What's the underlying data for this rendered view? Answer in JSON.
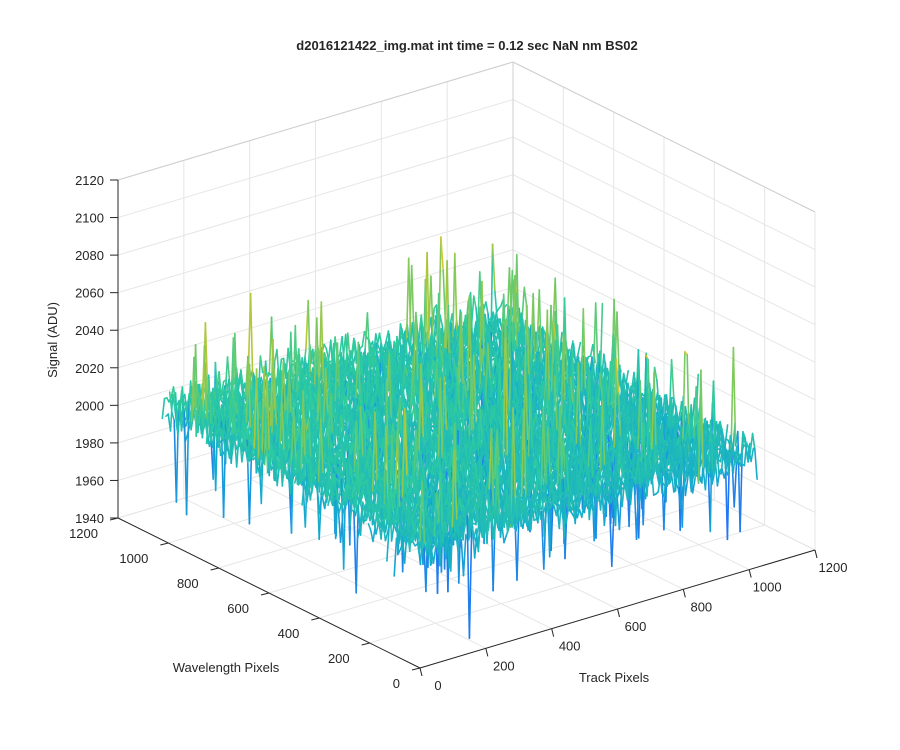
{
  "chart_data": {
    "type": "surface",
    "title": "d2016121422_img.mat int time = 0.12 sec  NaN nm BS02",
    "xlabel": "Track Pixels",
    "ylabel": "Wavelength Pixels",
    "zlabel": "Signal (ADU)",
    "xlim": [
      0,
      1200
    ],
    "ylim": [
      0,
      1200
    ],
    "zlim": [
      1940,
      2120
    ],
    "xticks": [
      "0",
      "200",
      "400",
      "600",
      "800",
      "1000",
      "1200"
    ],
    "yticks": [
      "0",
      "200",
      "400",
      "600",
      "800",
      "1000",
      "1200"
    ],
    "zticks": [
      "1940",
      "1960",
      "1980",
      "2000",
      "2020",
      "2040",
      "2060",
      "2080",
      "2100",
      "2120"
    ],
    "data_extent": {
      "x": [
        0,
        1024
      ],
      "y": [
        0,
        1024
      ]
    },
    "surface_mean_signal": 2005,
    "noise_range_adu": [
      1955,
      2075
    ],
    "colormap": [
      "#3e26a8",
      "#2473f4",
      "#14abcf",
      "#2ecc9e",
      "#aec73a",
      "#f2c634",
      "#f9fb15"
    ],
    "grid": true
  }
}
